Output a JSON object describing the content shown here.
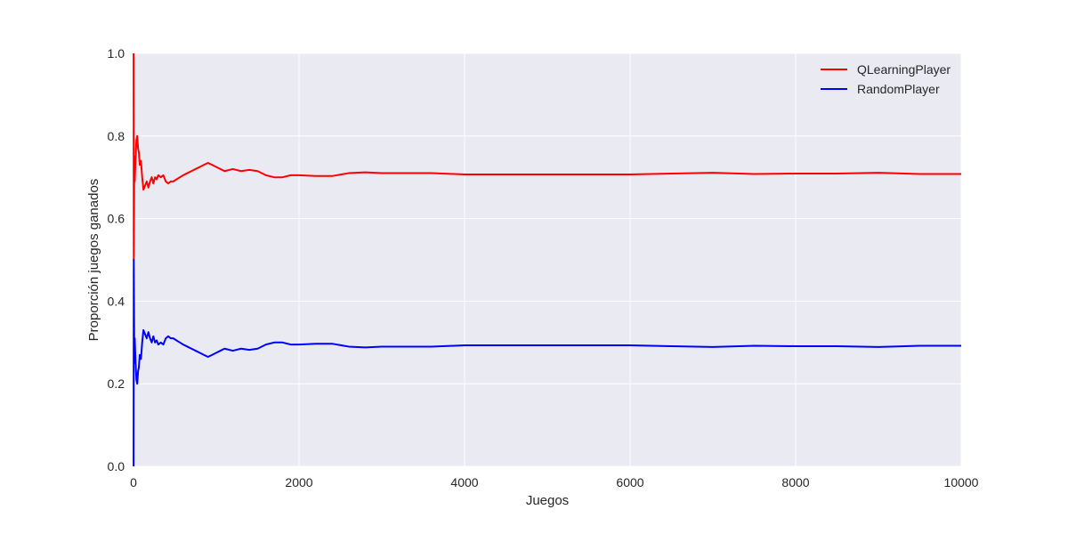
{
  "colors": {
    "plot_background": "#eaeaf2",
    "grid": "#ffffff",
    "text": "#262626"
  },
  "chart_data": {
    "type": "line",
    "title": "",
    "xlabel": "Juegos",
    "ylabel": "Proporción juegos ganados",
    "xlim": [
      0,
      10000
    ],
    "ylim": [
      0.0,
      1.0
    ],
    "xticks": [
      0,
      2000,
      4000,
      6000,
      8000,
      10000
    ],
    "xtick_labels": [
      "0",
      "2000",
      "4000",
      "6000",
      "8000",
      "10000"
    ],
    "yticks": [
      0.0,
      0.2,
      0.4,
      0.6,
      0.8,
      1.0
    ],
    "ytick_labels": [
      "0.0",
      "0.2",
      "0.4",
      "0.6",
      "0.8",
      "1.0"
    ],
    "grid": true,
    "legend_position": "top-right",
    "series": [
      {
        "name": "QLearningPlayer",
        "color": "#ff0000",
        "x": [
          1,
          3,
          6,
          10,
          15,
          20,
          28,
          35,
          45,
          55,
          65,
          75,
          90,
          105,
          120,
          140,
          160,
          180,
          200,
          220,
          240,
          260,
          280,
          300,
          330,
          360,
          390,
          420,
          450,
          480,
          520,
          560,
          600,
          650,
          700,
          750,
          800,
          850,
          900,
          950,
          1000,
          1050,
          1100,
          1200,
          1300,
          1400,
          1500,
          1600,
          1700,
          1800,
          1900,
          2000,
          2200,
          2400,
          2600,
          2800,
          3000,
          3300,
          3600,
          4000,
          4500,
          5000,
          5500,
          6000,
          6500,
          7000,
          7500,
          8000,
          8500,
          9000,
          9500,
          10000
        ],
        "values": [
          1.0,
          0.5,
          0.6,
          0.75,
          0.69,
          0.72,
          0.76,
          0.79,
          0.8,
          0.77,
          0.76,
          0.73,
          0.74,
          0.7,
          0.67,
          0.68,
          0.69,
          0.675,
          0.69,
          0.7,
          0.685,
          0.7,
          0.695,
          0.705,
          0.7,
          0.705,
          0.69,
          0.685,
          0.69,
          0.69,
          0.695,
          0.7,
          0.705,
          0.71,
          0.715,
          0.72,
          0.725,
          0.73,
          0.735,
          0.73,
          0.725,
          0.72,
          0.715,
          0.72,
          0.715,
          0.718,
          0.715,
          0.705,
          0.7,
          0.7,
          0.705,
          0.705,
          0.703,
          0.703,
          0.71,
          0.712,
          0.71,
          0.71,
          0.71,
          0.707,
          0.707,
          0.707,
          0.707,
          0.707,
          0.709,
          0.711,
          0.708,
          0.709,
          0.709,
          0.711,
          0.708,
          0.708
        ]
      },
      {
        "name": "RandomPlayer",
        "color": "#0000ff",
        "x": [
          1,
          3,
          6,
          10,
          15,
          20,
          28,
          35,
          45,
          55,
          65,
          75,
          90,
          105,
          120,
          140,
          160,
          180,
          200,
          220,
          240,
          260,
          280,
          300,
          330,
          360,
          390,
          420,
          450,
          480,
          520,
          560,
          600,
          650,
          700,
          750,
          800,
          850,
          900,
          950,
          1000,
          1050,
          1100,
          1200,
          1300,
          1400,
          1500,
          1600,
          1700,
          1800,
          1900,
          2000,
          2200,
          2400,
          2600,
          2800,
          3000,
          3300,
          3600,
          4000,
          4500,
          5000,
          5500,
          6000,
          6500,
          7000,
          7500,
          8000,
          8500,
          9000,
          9500,
          10000
        ],
        "values": [
          0.0,
          0.5,
          0.4,
          0.25,
          0.31,
          0.28,
          0.24,
          0.21,
          0.2,
          0.23,
          0.24,
          0.27,
          0.26,
          0.3,
          0.33,
          0.32,
          0.31,
          0.325,
          0.31,
          0.3,
          0.315,
          0.3,
          0.305,
          0.295,
          0.3,
          0.295,
          0.31,
          0.315,
          0.31,
          0.31,
          0.305,
          0.3,
          0.295,
          0.29,
          0.285,
          0.28,
          0.275,
          0.27,
          0.265,
          0.27,
          0.275,
          0.28,
          0.285,
          0.28,
          0.285,
          0.282,
          0.285,
          0.295,
          0.3,
          0.3,
          0.295,
          0.295,
          0.297,
          0.297,
          0.29,
          0.288,
          0.29,
          0.29,
          0.29,
          0.293,
          0.293,
          0.293,
          0.293,
          0.293,
          0.291,
          0.289,
          0.292,
          0.291,
          0.291,
          0.289,
          0.292,
          0.292
        ]
      }
    ]
  }
}
